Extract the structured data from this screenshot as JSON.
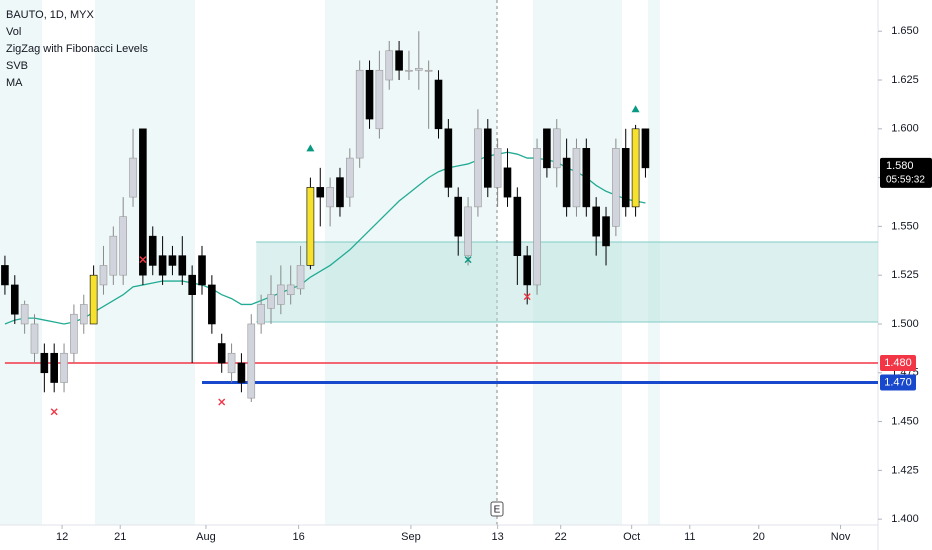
{
  "chart_data": {
    "type": "candlestick",
    "title": "BAUTO, 1D, MYX",
    "indicators": [
      "Vol",
      "ZigZag with Fibonacci Levels",
      "SVB",
      "MA"
    ],
    "x": [
      0,
      1,
      2,
      3,
      4,
      5,
      6,
      7,
      8,
      9,
      10,
      11,
      12,
      13,
      14,
      15,
      16,
      17,
      18,
      19,
      20,
      21,
      22,
      23,
      24,
      25,
      26,
      27,
      28,
      29,
      30,
      31,
      32,
      33,
      34,
      35,
      36,
      37,
      38,
      39,
      40,
      41,
      42,
      43,
      44,
      45,
      46,
      47,
      48,
      49,
      50,
      51,
      52,
      53,
      54,
      55,
      56,
      57,
      58,
      59,
      60,
      61,
      62,
      63,
      64,
      65
    ],
    "open": [
      1.53,
      1.52,
      1.5,
      1.485,
      1.485,
      1.485,
      1.47,
      1.485,
      1.5,
      1.5,
      1.52,
      1.525,
      1.525,
      1.565,
      1.6,
      1.545,
      1.535,
      1.535,
      1.535,
      1.525,
      1.535,
      1.52,
      1.49,
      1.475,
      1.48,
      1.462,
      1.5,
      1.508,
      1.51,
      1.515,
      1.518,
      1.53,
      1.57,
      1.56,
      1.575,
      1.565,
      1.585,
      1.63,
      1.6,
      1.625,
      1.64,
      1.63,
      1.63,
      1.63,
      1.625,
      1.6,
      1.565,
      1.535,
      1.56,
      1.6,
      1.57,
      1.58,
      1.565,
      1.535,
      1.52,
      1.6,
      1.58,
      1.585,
      1.56,
      1.59,
      1.56,
      1.555,
      1.55,
      1.59,
      1.56,
      1.6
    ],
    "high": [
      1.535,
      1.525,
      1.512,
      1.505,
      1.49,
      1.49,
      1.49,
      1.51,
      1.515,
      1.53,
      1.54,
      1.55,
      1.565,
      1.6,
      1.6,
      1.55,
      1.545,
      1.54,
      1.545,
      1.53,
      1.54,
      1.525,
      1.495,
      1.49,
      1.485,
      1.505,
      1.515,
      1.525,
      1.53,
      1.53,
      1.54,
      1.575,
      1.58,
      1.575,
      1.58,
      1.59,
      1.635,
      1.635,
      1.64,
      1.645,
      1.645,
      1.64,
      1.65,
      1.635,
      1.63,
      1.605,
      1.57,
      1.565,
      1.61,
      1.605,
      1.595,
      1.59,
      1.57,
      1.54,
      1.595,
      1.6,
      1.605,
      1.595,
      1.595,
      1.595,
      1.565,
      1.56,
      1.595,
      1.6,
      1.602,
      1.6
    ],
    "low": [
      1.515,
      1.5,
      1.495,
      1.48,
      1.465,
      1.465,
      1.465,
      1.48,
      1.495,
      1.5,
      1.515,
      1.52,
      1.52,
      1.56,
      1.52,
      1.525,
      1.52,
      1.525,
      1.52,
      1.48,
      1.515,
      1.495,
      1.475,
      1.47,
      1.465,
      1.46,
      1.495,
      1.5,
      1.505,
      1.51,
      1.515,
      1.528,
      1.55,
      1.55,
      1.555,
      1.56,
      1.58,
      1.6,
      1.595,
      1.62,
      1.625,
      1.625,
      1.62,
      1.6,
      1.595,
      1.565,
      1.535,
      1.53,
      1.555,
      1.565,
      1.56,
      1.56,
      1.52,
      1.51,
      1.515,
      1.575,
      1.57,
      1.555,
      1.555,
      1.555,
      1.535,
      1.53,
      1.545,
      1.555,
      1.555,
      1.575
    ],
    "close": [
      1.52,
      1.505,
      1.51,
      1.5,
      1.475,
      1.47,
      1.485,
      1.505,
      1.51,
      1.525,
      1.53,
      1.545,
      1.555,
      1.585,
      1.525,
      1.53,
      1.525,
      1.53,
      1.525,
      1.515,
      1.52,
      1.5,
      1.48,
      1.485,
      1.47,
      1.5,
      1.51,
      1.515,
      1.52,
      1.52,
      1.53,
      1.57,
      1.565,
      1.57,
      1.56,
      1.585,
      1.63,
      1.605,
      1.63,
      1.64,
      1.63,
      1.63,
      1.631,
      1.63,
      1.6,
      1.57,
      1.545,
      1.56,
      1.6,
      1.57,
      1.59,
      1.565,
      1.535,
      1.52,
      1.59,
      1.58,
      1.6,
      1.56,
      1.59,
      1.56,
      1.545,
      1.54,
      1.59,
      1.56,
      1.6,
      1.58
    ],
    "up_color": "#d1d4dc",
    "down_color": "#000000",
    "highlight_color": "#f5e12e",
    "highlight": [
      9,
      31,
      64
    ],
    "ma": {
      "color": "#22ab94",
      "values": [
        1.5,
        1.502,
        1.503,
        1.503,
        1.502,
        1.501,
        1.5,
        1.501,
        1.503,
        1.506,
        1.509,
        1.512,
        1.515,
        1.519,
        1.52,
        1.521,
        1.522,
        1.522,
        1.522,
        1.521,
        1.52,
        1.518,
        1.515,
        1.513,
        1.51,
        1.51,
        1.512,
        1.514,
        1.516,
        1.518,
        1.52,
        1.524,
        1.527,
        1.53,
        1.534,
        1.538,
        1.543,
        1.548,
        1.553,
        1.558,
        1.563,
        1.567,
        1.571,
        1.575,
        1.578,
        1.58,
        1.581,
        1.582,
        1.584,
        1.586,
        1.587,
        1.588,
        1.587,
        1.585,
        1.585,
        1.584,
        1.583,
        1.58,
        1.578,
        1.575,
        1.571,
        1.568,
        1.566,
        1.564,
        1.563,
        1.562
      ]
    },
    "zone": {
      "top": 1.542,
      "bottom": 1.501,
      "x_start": 25.5,
      "color": "#b2dfdb"
    },
    "levels": [
      {
        "value": 1.48,
        "label": "1.480",
        "color": "#f23645",
        "x_start": 0
      },
      {
        "value": 1.47,
        "label": "1.470",
        "color": "#1848cc",
        "x_start": 20
      }
    ],
    "last_price": {
      "value": 1.58,
      "label": "1.580",
      "countdown": "05:59:32"
    },
    "x_markers": [
      {
        "x": 5,
        "y": 1.455,
        "color": "#f23645"
      },
      {
        "x": 14,
        "y": 1.533,
        "color": "#f23645"
      },
      {
        "x": 22,
        "y": 1.46,
        "color": "#f23645"
      },
      {
        "x": 47,
        "y": 1.533,
        "color": "#089981"
      },
      {
        "x": 53,
        "y": 1.514,
        "color": "#f23645"
      }
    ],
    "triangle_markers": [
      {
        "x": 31,
        "y": 1.59,
        "color": "#089981"
      },
      {
        "x": 64,
        "y": 1.61,
        "color": "#089981"
      }
    ],
    "earnings_label": "E",
    "xlim": [
      -0.5,
      88.6
    ],
    "ylim": [
      1.397,
      1.666
    ],
    "xticks": [
      {
        "value": 5.8,
        "label": "12"
      },
      {
        "value": 11.7,
        "label": "21"
      },
      {
        "value": 20.4,
        "label": "Aug"
      },
      {
        "value": 29.8,
        "label": "16"
      },
      {
        "value": 41.2,
        "label": "Sep"
      },
      {
        "value": 50,
        "label": "13"
      },
      {
        "value": 56.4,
        "label": "22"
      },
      {
        "value": 63.6,
        "label": "Oct"
      },
      {
        "value": 69.5,
        "label": "11"
      },
      {
        "value": 76.5,
        "label": "20"
      },
      {
        "value": 84.8,
        "label": "Nov"
      }
    ],
    "yticks": [
      {
        "value": 1.4,
        "label": "1.400"
      },
      1.425,
      {
        "value": 1.45,
        "label": "1.450"
      },
      1.475,
      {
        "value": 1.5,
        "label": "1.500"
      },
      1.525,
      {
        "value": 1.55,
        "label": "1.550"
      },
      1.575,
      {
        "value": 1.6,
        "label": "1.600"
      },
      1.625,
      {
        "value": 1.65,
        "label": "1.650"
      }
    ]
  }
}
